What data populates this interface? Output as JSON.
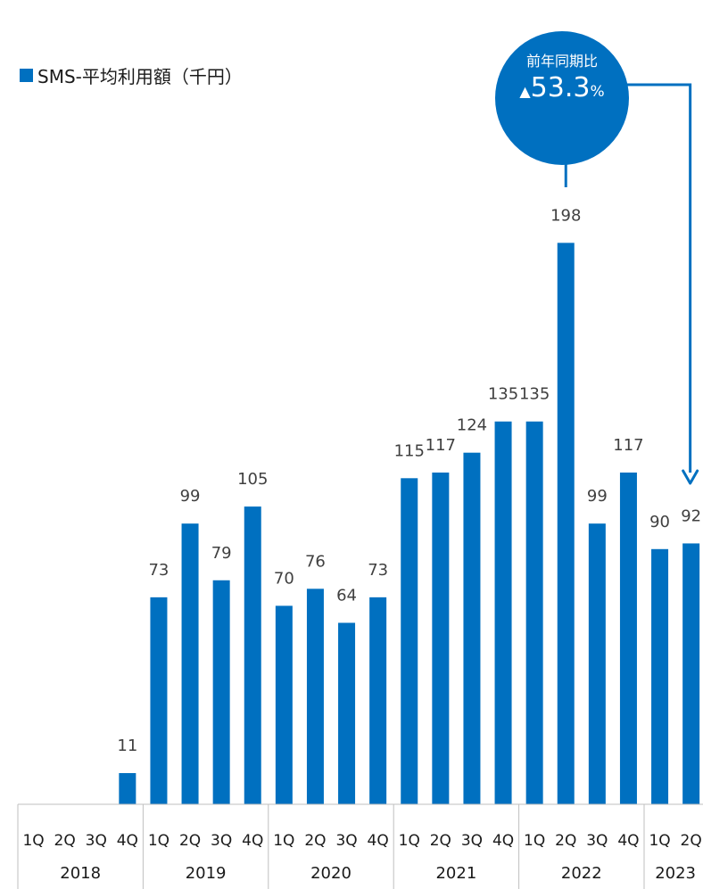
{
  "legend": {
    "label": "SMS-平均利用額（千円）",
    "color": "#0070C0"
  },
  "badge": {
    "label": "前年同期比",
    "arrow": "▲",
    "value": "53.3",
    "unit": "%"
  },
  "chart_data": {
    "type": "bar",
    "series": [
      {
        "name": "SMS-平均利用額（千円）",
        "values": [
          null,
          null,
          null,
          11,
          73,
          99,
          79,
          105,
          70,
          76,
          64,
          73,
          115,
          117,
          124,
          135,
          135,
          198,
          99,
          117,
          90,
          92
        ]
      }
    ],
    "categories": [
      "1Q",
      "2Q",
      "3Q",
      "4Q",
      "1Q",
      "2Q",
      "3Q",
      "4Q",
      "1Q",
      "2Q",
      "3Q",
      "4Q",
      "1Q",
      "2Q",
      "3Q",
      "4Q",
      "1Q",
      "2Q",
      "3Q",
      "4Q",
      "1Q",
      "2Q"
    ],
    "year_groups": [
      {
        "label": "2018",
        "count": 4
      },
      {
        "label": "2019",
        "count": 4
      },
      {
        "label": "2020",
        "count": 4
      },
      {
        "label": "2021",
        "count": 4
      },
      {
        "label": "2022",
        "count": 4
      },
      {
        "label": "2023",
        "count": 2
      }
    ],
    "ylim": [
      0,
      230
    ],
    "grid": false,
    "legend_position": "top-left",
    "color": "#0070C0"
  }
}
